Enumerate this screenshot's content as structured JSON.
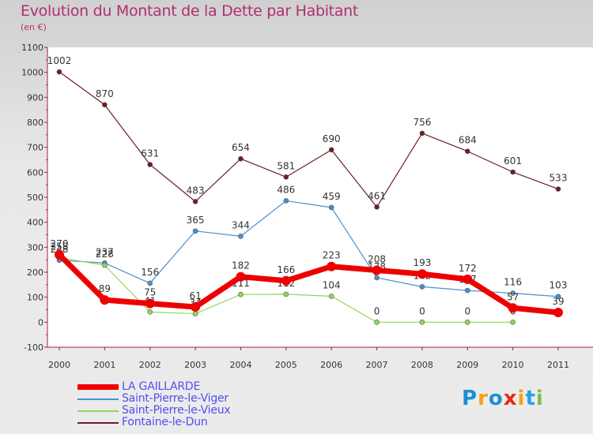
{
  "chart_data": {
    "type": "line",
    "title": "Evolution du Montant de la Dette par Habitant",
    "subtitle": "(en €)",
    "xlabel": "",
    "ylabel": "",
    "categories": [
      "2000",
      "2001",
      "2002",
      "2003",
      "2004",
      "2005",
      "2006",
      "2007",
      "2008",
      "2009",
      "2010",
      "2011"
    ],
    "ylim": [
      -100,
      1100
    ],
    "yticks": [
      -100,
      0,
      100,
      200,
      300,
      400,
      500,
      600,
      700,
      800,
      900,
      1000,
      1100
    ],
    "grid": false,
    "legend_position": "bottom-left",
    "series": [
      {
        "name": "Fontaine-le-Dun",
        "color": "#6b1e24",
        "values": [
          1002,
          870,
          631,
          483,
          654,
          581,
          690,
          461,
          756,
          684,
          601,
          533
        ]
      },
      {
        "name": "Saint-Pierre-le-Viger",
        "color": "#4a8fd0",
        "values": [
          248,
          237,
          156,
          365,
          344,
          486,
          459,
          178,
          142,
          127,
          116,
          103
        ]
      },
      {
        "name": "Saint-Pierre-le-Vieux",
        "color": "#8ed85a",
        "values": [
          258,
          228,
          41,
          34,
          111,
          112,
          104,
          0,
          0,
          0,
          0,
          null
        ]
      },
      {
        "name": "LA GAILLARDE",
        "color": "#ee0000",
        "values": [
          270,
          89,
          75,
          61,
          182,
          166,
          223,
          208,
          193,
          172,
          57,
          39
        ]
      }
    ],
    "legend": [
      "LA GAILLARDE",
      "Saint-Pierre-le-Viger",
      "Saint-Pierre-le-Vieux",
      "Fontaine-le-Dun"
    ]
  },
  "logo": {
    "letters": [
      "P",
      "r",
      "o",
      "x",
      "i",
      "t",
      "i"
    ],
    "colors": [
      "#1c8fd8",
      "#f2a21a",
      "#1c8fd8",
      "#e8281c",
      "#f2a21a",
      "#2b9fe0",
      "#7ac143"
    ]
  }
}
